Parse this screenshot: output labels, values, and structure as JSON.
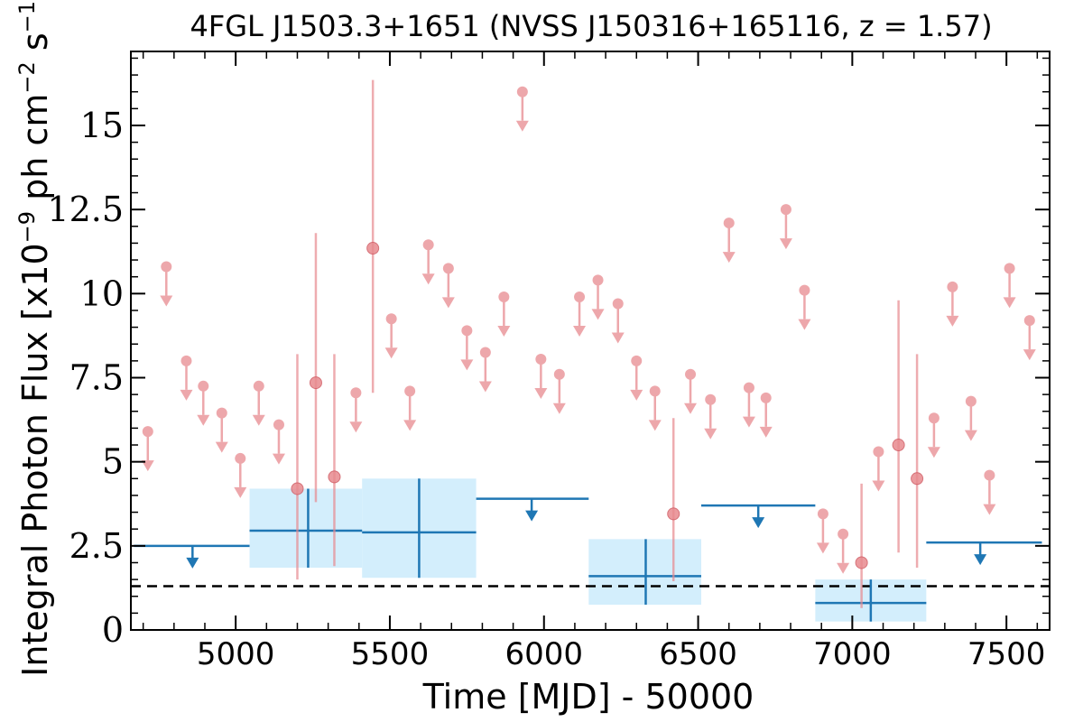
{
  "chart_data": {
    "type": "scatter",
    "title": "4FGL J1503.3+1651 (NVSS J150316+165116, z = 1.57)",
    "xlabel": "Time [MJD] - 50000",
    "ylabel": "Integral Photon Flux [x10^-9 ph cm^-2 s^-1]",
    "xlim": [
      4660,
      7640
    ],
    "ylim": [
      0,
      17.2
    ],
    "x_ticks": [
      5000,
      5500,
      6000,
      6500,
      7000,
      7500
    ],
    "x_tick_labels": [
      "5000",
      "5500",
      "6000",
      "6500",
      "7000",
      "7500"
    ],
    "y_ticks": [
      0,
      2.5,
      5,
      7.5,
      10,
      12.5,
      15
    ],
    "y_tick_labels": [
      "0",
      "2.5",
      "5",
      "7.5",
      "10",
      "12.5",
      "15"
    ],
    "grid": false,
    "reference_line": {
      "y": 1.3,
      "style": "dashed",
      "color": "#000000"
    },
    "colors": {
      "short_bin": "#e88a8f",
      "long_bin": "#1f77b4",
      "long_bin_fill": "#d3eefc"
    },
    "series": [
      {
        "kind": "upper_limits",
        "points": [
          {
            "x": 4715,
            "y": 5.9
          },
          {
            "x": 4775,
            "y": 10.8
          },
          {
            "x": 4840,
            "y": 8.0
          },
          {
            "x": 4895,
            "y": 7.25
          },
          {
            "x": 4955,
            "y": 6.45
          },
          {
            "x": 5015,
            "y": 5.1
          },
          {
            "x": 5075,
            "y": 7.25
          },
          {
            "x": 5140,
            "y": 6.1
          },
          {
            "x": 5390,
            "y": 7.05
          },
          {
            "x": 5505,
            "y": 9.25
          },
          {
            "x": 5565,
            "y": 7.1
          },
          {
            "x": 5625,
            "y": 11.45
          },
          {
            "x": 5690,
            "y": 10.75
          },
          {
            "x": 5750,
            "y": 8.9
          },
          {
            "x": 5810,
            "y": 8.25
          },
          {
            "x": 5870,
            "y": 9.9
          },
          {
            "x": 5930,
            "y": 16.0
          },
          {
            "x": 5990,
            "y": 8.05
          },
          {
            "x": 6050,
            "y": 7.6
          },
          {
            "x": 6115,
            "y": 9.9
          },
          {
            "x": 6175,
            "y": 10.4
          },
          {
            "x": 6240,
            "y": 9.7
          },
          {
            "x": 6300,
            "y": 8.0
          },
          {
            "x": 6360,
            "y": 7.1
          },
          {
            "x": 6475,
            "y": 7.6
          },
          {
            "x": 6540,
            "y": 6.85
          },
          {
            "x": 6600,
            "y": 12.1
          },
          {
            "x": 6665,
            "y": 7.2
          },
          {
            "x": 6720,
            "y": 6.9
          },
          {
            "x": 6785,
            "y": 12.5
          },
          {
            "x": 6845,
            "y": 10.1
          },
          {
            "x": 6905,
            "y": 3.45
          },
          {
            "x": 6970,
            "y": 2.85
          },
          {
            "x": 7085,
            "y": 5.3
          },
          {
            "x": 7265,
            "y": 6.3
          },
          {
            "x": 7325,
            "y": 10.2
          },
          {
            "x": 7385,
            "y": 6.8
          },
          {
            "x": 7445,
            "y": 4.6
          },
          {
            "x": 7510,
            "y": 10.75
          },
          {
            "x": 7575,
            "y": 9.2
          }
        ]
      },
      {
        "kind": "detections",
        "points": [
          {
            "x": 5200,
            "y": 4.2,
            "y_low": 1.5,
            "y_high": 8.2
          },
          {
            "x": 5260,
            "y": 7.35,
            "y_low": 3.8,
            "y_high": 11.8
          },
          {
            "x": 5320,
            "y": 4.55,
            "y_low": 1.9,
            "y_high": 8.2
          },
          {
            "x": 5445,
            "y": 11.35,
            "y_low": 7.05,
            "y_high": 16.35
          },
          {
            "x": 6420,
            "y": 3.45,
            "y_low": 1.45,
            "y_high": 6.3
          },
          {
            "x": 7030,
            "y": 2.0,
            "y_low": 0.65,
            "y_high": 4.35
          },
          {
            "x": 7150,
            "y": 5.5,
            "y_low": 2.3,
            "y_high": 9.8
          },
          {
            "x": 7210,
            "y": 4.5,
            "y_low": 1.85,
            "y_high": 8.2
          }
        ]
      },
      {
        "kind": "long_upper_limits",
        "bins": [
          {
            "x0": 4670,
            "x1": 5045,
            "x": 4860,
            "y": 2.5
          },
          {
            "x0": 5780,
            "x1": 6145,
            "x": 5960,
            "y": 3.9
          },
          {
            "x0": 6510,
            "x1": 6880,
            "x": 6695,
            "y": 3.7
          },
          {
            "x0": 7240,
            "x1": 7615,
            "x": 7415,
            "y": 2.6
          }
        ]
      },
      {
        "kind": "long_detections",
        "bins": [
          {
            "x0": 5045,
            "x1": 5410,
            "x": 5235,
            "y": 2.95,
            "y_low": 1.85,
            "y_high": 4.2
          },
          {
            "x0": 5410,
            "x1": 5780,
            "x": 5595,
            "y": 2.9,
            "y_low": 1.55,
            "y_high": 4.5
          },
          {
            "x0": 6145,
            "x1": 6510,
            "x": 6330,
            "y": 1.6,
            "y_low": 0.75,
            "y_high": 2.7
          },
          {
            "x0": 6880,
            "x1": 7240,
            "x": 7060,
            "y": 0.8,
            "y_low": 0.25,
            "y_high": 1.5
          }
        ]
      }
    ]
  }
}
